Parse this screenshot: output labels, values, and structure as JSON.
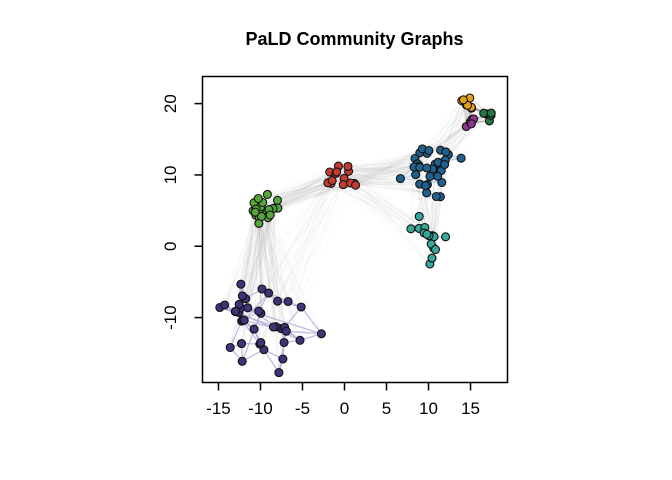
{
  "chart_data": {
    "type": "scatter",
    "subtype": "network-community-graph",
    "title": "PaLD Community Graphs",
    "xlabel": "",
    "ylabel": "",
    "x_ticks": [
      -15,
      -10,
      -5,
      0,
      5,
      10,
      15
    ],
    "y_ticks": [
      -10,
      0,
      10,
      20
    ],
    "x_range": [
      -16.9,
      19.4
    ],
    "y_range": [
      -19.1,
      23.8
    ],
    "grid": false,
    "legend": false,
    "seed": 1337,
    "node_radius": 4,
    "node_stroke_color": "#111111",
    "bridge_color": "#8f8f8f",
    "axis_color": "#000000",
    "communities": [
      {
        "name": "violet",
        "color": "#41327a",
        "edge_color": "#b4aad9",
        "edge_opacity": 0.8,
        "knn": 3,
        "extra_edges": 8,
        "n": 38,
        "center": [
          -9.5,
          -10.3
        ],
        "sd": [
          2.9,
          3.1
        ]
      },
      {
        "name": "green",
        "color": "#57a63b",
        "edge_color": "#bddcaa",
        "edge_opacity": 0.5,
        "knn": 2,
        "extra_edges": 0,
        "n": 22,
        "center": [
          -9.8,
          5.1
        ],
        "sd": [
          1.2,
          1.2
        ]
      },
      {
        "name": "red",
        "color": "#c43c30",
        "edge_color": "#eab8b0",
        "edge_opacity": 0.5,
        "knn": 2,
        "extra_edges": 0,
        "n": 14,
        "center": [
          0.1,
          9.7
        ],
        "sd": [
          0.8,
          0.9
        ]
      },
      {
        "name": "blue",
        "color": "#20618d",
        "edge_color": "#a9c9e6",
        "edge_opacity": 0.75,
        "knn": 2,
        "extra_edges": 2,
        "n": 33,
        "center": [
          10.1,
          10.7
        ],
        "sd": [
          1.5,
          1.6
        ]
      },
      {
        "name": "teal",
        "color": "#3aa79b",
        "edge_color": "#a7ddd8",
        "edge_opacity": 0.75,
        "knn": 2,
        "extra_edges": 1,
        "n": 16,
        "center": [
          9.8,
          0.5
        ],
        "sd": [
          1.4,
          1.5
        ]
      },
      {
        "name": "orange",
        "color": "#e3a117",
        "edge_color": "#f4d596",
        "edge_opacity": 0.6,
        "knn": 2,
        "extra_edges": 0,
        "n": 7,
        "center": [
          14.7,
          20.5
        ],
        "sd": [
          0.55,
          0.6
        ]
      },
      {
        "name": "darkgreen",
        "color": "#247444",
        "edge_color": "#a3cdb2",
        "edge_opacity": 0.6,
        "knn": 2,
        "extra_edges": 0,
        "n": 6,
        "center": [
          17.2,
          18.5
        ],
        "sd": [
          0.5,
          0.5
        ]
      },
      {
        "name": "magenta",
        "color": "#8d3590",
        "edge_color": "#d5a8d6",
        "edge_opacity": 0.6,
        "knn": 2,
        "extra_edges": 0,
        "n": 5,
        "center": [
          15.0,
          16.7
        ],
        "sd": [
          0.45,
          0.5
        ]
      }
    ],
    "bridges": [
      {
        "from": "green",
        "to": "violet",
        "count": 130,
        "opacity": 0.05,
        "width": 1
      },
      {
        "from": "red",
        "to": "violet",
        "count": 40,
        "opacity": 0.035,
        "width": 1
      },
      {
        "from": "green",
        "to": "red",
        "count": 70,
        "opacity": 0.05,
        "width": 1
      },
      {
        "from": "red",
        "to": "blue",
        "count": 90,
        "opacity": 0.05,
        "width": 1
      },
      {
        "from": "red",
        "to": "teal",
        "count": 40,
        "opacity": 0.04,
        "width": 1
      },
      {
        "from": "blue",
        "to": "teal",
        "count": 55,
        "opacity": 0.05,
        "width": 1
      },
      {
        "from": "blue",
        "to": "orange",
        "count": 22,
        "opacity": 0.06,
        "width": 1
      },
      {
        "from": "blue",
        "to": "magenta",
        "count": 20,
        "opacity": 0.06,
        "width": 1
      },
      {
        "from": "blue",
        "to": "darkgreen",
        "count": 8,
        "opacity": 0.05,
        "width": 1
      },
      {
        "from": "orange",
        "to": "magenta",
        "count": 9,
        "opacity": 0.3,
        "width": 1.4
      },
      {
        "from": "orange",
        "to": "darkgreen",
        "count": 9,
        "opacity": 0.3,
        "width": 1.4
      },
      {
        "from": "magenta",
        "to": "darkgreen",
        "count": 7,
        "opacity": 0.3,
        "width": 1.4
      }
    ]
  }
}
